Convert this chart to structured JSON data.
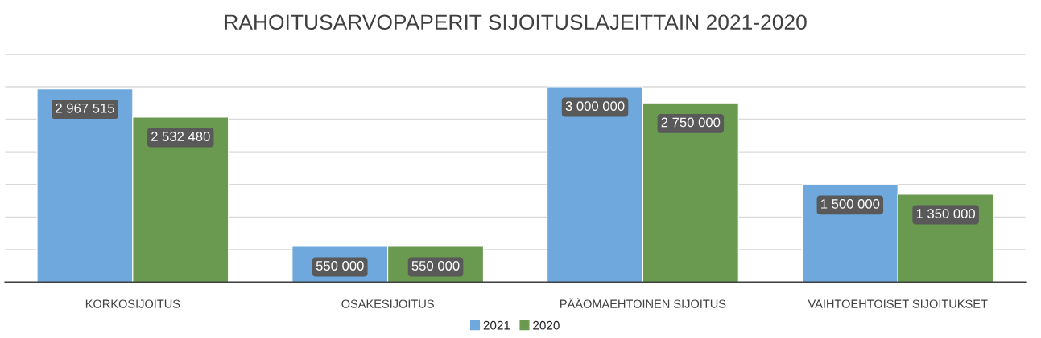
{
  "chart_data": {
    "type": "bar",
    "title": "RAHOITUSARVOPAPERIT SIJOITUSLAJEITTAIN 2021-2020",
    "categories": [
      "KORKOSIJOITUS",
      "OSAKESIJOITUS",
      "PÄÄOMAEHTOINEN SIJOITUS",
      "VAIHTOEHTOISET SIJOITUKSET"
    ],
    "series": [
      {
        "name": "2021",
        "color": "#6fa8dc",
        "values": [
          2967515,
          550000,
          3000000,
          1500000
        ],
        "value_labels": [
          "2 967 515",
          "550 000",
          "3 000 000",
          "1 500 000"
        ]
      },
      {
        "name": "2020",
        "color": "#6a9a4f",
        "values": [
          2532480,
          550000,
          2750000,
          1350000
        ],
        "value_labels": [
          "2 532 480",
          "550 000",
          "2 750 000",
          "1 350 000"
        ]
      }
    ],
    "ylim": [
      0,
      3500000
    ],
    "yticks": [
      {
        "value": 0,
        "label": null
      },
      {
        "value": 500000,
        "label": null
      },
      {
        "value": 1000000,
        "label": null
      },
      {
        "value": 1500000,
        "label": null
      },
      {
        "value": 2000000,
        "label": null
      },
      {
        "value": 2500000,
        "label": null
      },
      {
        "value": 3000000,
        "label": null
      },
      {
        "value": 3500000,
        "label": null
      }
    ],
    "tick_labels": "x",
    "grid": "y",
    "legend": "bottom"
  }
}
